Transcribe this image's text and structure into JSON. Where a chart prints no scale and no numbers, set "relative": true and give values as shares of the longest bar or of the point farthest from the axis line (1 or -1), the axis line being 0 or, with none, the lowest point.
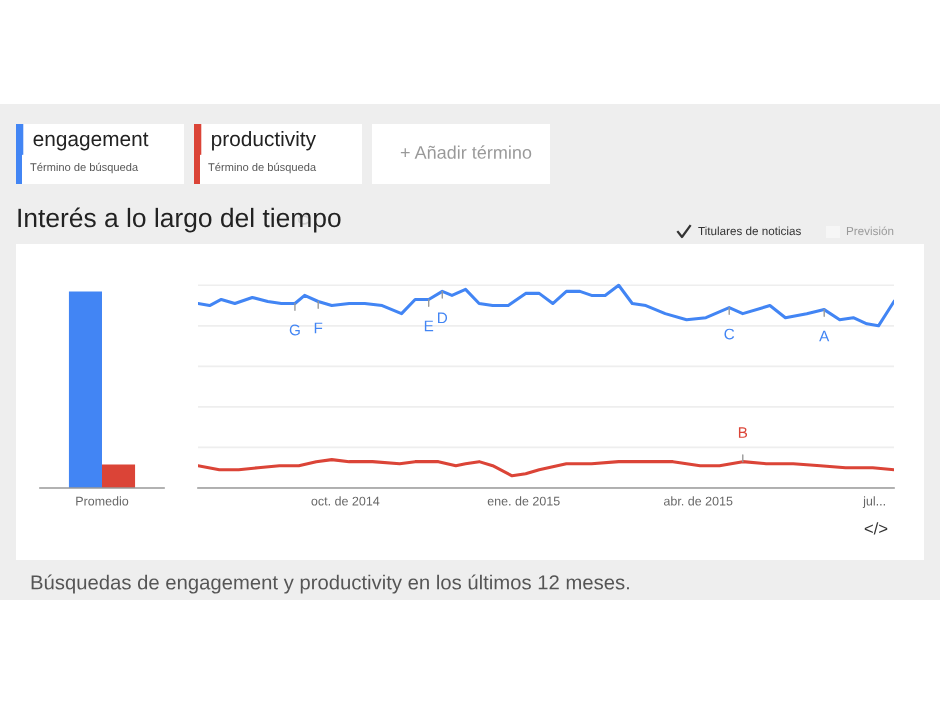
{
  "chart_data": [
    {
      "type": "bar",
      "title": "Interés a lo largo del tiempo",
      "categories": [
        "Promedio"
      ],
      "series": [
        {
          "color": "#4285f4",
          "values": [
            1
          ]
        },
        {
          "color": "#db4437",
          "values": [
            0.12
          ]
        }
      ],
      "relative": true,
      "annotations": [
        "Término de búsqueda",
        "Término de búsqueda",
        "+ Añadir término",
        "Titulares de noticias",
        "Previsión",
        "</>",
        "Búsquedas de engagement y productivity en los últimos 12 meses."
      ]
    },
    {
      "type": "line",
      "relative": true,
      "legend": "top left",
      "grid": "y",
      "tick_labels": "x",
      "marker": "none",
      "line_style": "solid",
      "xlim": [
        "2014-07-17",
        "2015-07-11"
      ],
      "xticks": [
        {
          "value": "2014-10-01",
          "label": "oct. de 2014"
        },
        {
          "value": "2015-01-01",
          "label": "ene. de 2015"
        },
        {
          "value": "2015-04-01",
          "label": "abr. de 2015"
        },
        {
          "value": "2015-07-01",
          "label": "jul..."
        }
      ],
      "series": [
        {
          "name": "engagement",
          "color": "#4285f4",
          "x": [
            "2014-07-17",
            "2014-07-23",
            "2014-07-29",
            "2014-08-05",
            "2014-08-14",
            "2014-08-22",
            "2014-08-29",
            "2014-09-05",
            "2014-09-10",
            "2014-09-17",
            "2014-09-24",
            "2014-10-03",
            "2014-10-11",
            "2014-10-20",
            "2014-10-30",
            "2014-11-06",
            "2014-11-13",
            "2014-11-20",
            "2014-11-25",
            "2014-12-02",
            "2014-12-09",
            "2014-12-16",
            "2014-12-24",
            "2015-01-02",
            "2015-01-09",
            "2015-01-16",
            "2015-01-23",
            "2015-01-30",
            "2015-02-05",
            "2015-02-12",
            "2015-02-19",
            "2015-02-26",
            "2015-03-05",
            "2015-03-15",
            "2015-03-26",
            "2015-04-05",
            "2015-04-17",
            "2015-04-24",
            "2015-05-08",
            "2015-05-16",
            "2015-05-27",
            "2015-06-05",
            "2015-06-13",
            "2015-06-20",
            "2015-06-27",
            "2015-07-03",
            "2015-07-11"
          ],
          "values": [
            0.91,
            0.9,
            0.93,
            0.91,
            0.94,
            0.92,
            0.91,
            0.91,
            0.95,
            0.92,
            0.9,
            0.91,
            0.91,
            0.9,
            0.86,
            0.93,
            0.93,
            0.97,
            0.95,
            0.98,
            0.91,
            0.9,
            0.9,
            0.96,
            0.96,
            0.91,
            0.97,
            0.97,
            0.95,
            0.95,
            1,
            0.91,
            0.9,
            0.86,
            0.83,
            0.84,
            0.89,
            0.86,
            0.9,
            0.84,
            0.86,
            0.88,
            0.83,
            0.84,
            0.81,
            0.8,
            0.92
          ]
        },
        {
          "name": "productivity",
          "color": "#db4437",
          "x": [
            "2014-07-17",
            "2014-07-28",
            "2014-08-07",
            "2014-08-17",
            "2014-08-28",
            "2014-09-07",
            "2014-09-16",
            "2014-09-24",
            "2014-10-03",
            "2014-10-15",
            "2014-10-29",
            "2014-11-06",
            "2014-11-18",
            "2014-11-27",
            "2014-12-02",
            "2014-12-09",
            "2014-12-16",
            "2014-12-26",
            "2015-01-02",
            "2015-01-09",
            "2015-01-23",
            "2015-02-05",
            "2015-02-19",
            "2015-03-05",
            "2015-03-19",
            "2015-04-02",
            "2015-04-12",
            "2015-04-24",
            "2015-05-06",
            "2015-05-20",
            "2015-06-03",
            "2015-06-16",
            "2015-06-30",
            "2015-07-11"
          ],
          "values": [
            0.11,
            0.09,
            0.09,
            0.1,
            0.11,
            0.11,
            0.13,
            0.14,
            0.13,
            0.13,
            0.12,
            0.13,
            0.13,
            0.11,
            0.12,
            0.13,
            0.11,
            0.06,
            0.07,
            0.09,
            0.12,
            0.12,
            0.13,
            0.13,
            0.13,
            0.11,
            0.11,
            0.13,
            0.12,
            0.12,
            0.11,
            0.1,
            0.1,
            0.09
          ]
        }
      ],
      "annotations": [
        {
          "text": "G",
          "x": "2014-09-05",
          "y": 0.91
        },
        {
          "text": "F",
          "x": "2014-09-17",
          "y": 0.92
        },
        {
          "text": "E",
          "x": "2014-11-13",
          "y": 0.93
        },
        {
          "text": "D",
          "x": "2014-11-20",
          "y": 0.97
        },
        {
          "text": "C",
          "x": "2015-04-17",
          "y": 0.89
        },
        {
          "text": "A",
          "x": "2015-06-05",
          "y": 0.88
        },
        {
          "text": "B",
          "x": "2015-04-24",
          "y": 0.13
        }
      ]
    }
  ]
}
